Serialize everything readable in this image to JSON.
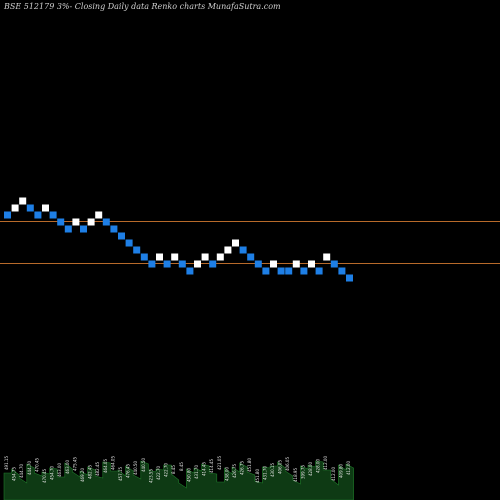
{
  "title": "BSE 512179 3%-  Closing Daily data  Renko  charts MunafaSutra.com",
  "colors": {
    "background": "#000000",
    "up_brick": "#ffffff",
    "down_brick": "#1e7fe6",
    "reference_line": "#b86a2a",
    "volume_fill": "#0e3a14",
    "volume_edge": "#1f7a2a"
  },
  "chart_data": {
    "type": "renko",
    "title": "BSE 512179 3%-  Closing Daily data  Renko  charts MunafaSutra.com",
    "brick_levels": [
      3,
      4,
      5,
      4,
      3,
      4,
      3,
      2,
      1,
      2,
      1,
      2,
      3,
      2,
      1,
      0,
      -1,
      -2,
      -3,
      -4,
      -3,
      -4,
      -3,
      -4,
      -5,
      -4,
      -3,
      -4,
      -3,
      -2,
      -1,
      -2,
      -3,
      -4,
      -5,
      -4,
      -5,
      -5,
      -4,
      -5,
      -4,
      -5,
      -3,
      -4,
      -5,
      -6
    ],
    "brick_directions": [
      "down",
      "up",
      "up",
      "down",
      "down",
      "up",
      "down",
      "down",
      "down",
      "up",
      "down",
      "up",
      "up",
      "down",
      "down",
      "down",
      "down",
      "down",
      "down",
      "down",
      "up",
      "down",
      "up",
      "down",
      "down",
      "up",
      "up",
      "down",
      "up",
      "up",
      "up",
      "down",
      "down",
      "down",
      "down",
      "up",
      "down",
      "down",
      "up",
      "down",
      "up",
      "down",
      "up",
      "down",
      "down",
      "down"
    ],
    "reference_levels": [
      2,
      -3
    ],
    "volume_labels": [
      "491.15",
      "454.75",
      "444.70",
      "444.70",
      "470.45",
      "470.45",
      "454.70",
      "463.00",
      "463.00",
      "475.45",
      "469.20",
      "482.45",
      "482.45",
      "464.05",
      "464.05",
      "457.15",
      "476.45",
      "440.50",
      "440.50",
      "423.55",
      "422.70",
      "422.70",
      "8.45",
      "8.45",
      "450.80",
      "431.70",
      "414.45",
      "414.45",
      "421.05",
      "438.00",
      "426.75",
      "426.75",
      "451.80",
      "451.80",
      "431.70",
      "430.15",
      "406.05",
      "406.05",
      "418.95",
      "399.75",
      "428.00",
      "428.00",
      "412.00",
      "412.00",
      "409.80",
      "412.00"
    ]
  }
}
